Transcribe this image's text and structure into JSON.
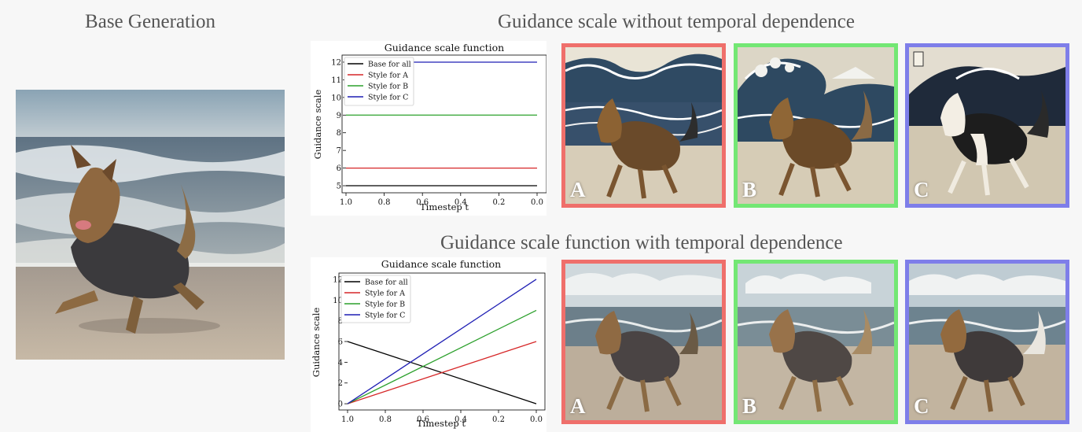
{
  "headings": {
    "base": "Base Generation",
    "top": "Guidance scale without temporal dependence",
    "bottom": "Guidance scale function with temporal dependence"
  },
  "colors": {
    "border_a": "#ef6f6b",
    "border_b": "#73e774",
    "border_c": "#7e7ee9"
  },
  "tiles_top": [
    {
      "letter": "A",
      "style": "ukiyo-e wave",
      "border": "a"
    },
    {
      "letter": "B",
      "style": "ukiyo-e wave",
      "border": "b"
    },
    {
      "letter": "C",
      "style": "ukiyo-e wave",
      "border": "c"
    }
  ],
  "tiles_bottom": [
    {
      "letter": "A",
      "style": "beach clouds",
      "border": "a"
    },
    {
      "letter": "B",
      "style": "beach clouds",
      "border": "b"
    },
    {
      "letter": "C",
      "style": "beach clouds",
      "border": "c"
    }
  ],
  "chart_data": [
    {
      "type": "line",
      "title": "Guidance scale function",
      "xlabel": "Timestep t",
      "ylabel": "Guidance scale",
      "xlim": [
        1.0,
        0.0
      ],
      "ylim": [
        4.6,
        12.4
      ],
      "xticks": [
        "1.0",
        "0.8",
        "0.6",
        "0.4",
        "0.2",
        "0.0"
      ],
      "yticks": [
        "5",
        "6",
        "7",
        "8",
        "9",
        "10",
        "11",
        "12"
      ],
      "legend": "top-left",
      "series": [
        {
          "name": "Base for all",
          "color": "#000000",
          "x": [
            1.0,
            0.0
          ],
          "y": [
            5,
            5
          ]
        },
        {
          "name": "Style for A",
          "color": "#d62728",
          "x": [
            1.0,
            0.0
          ],
          "y": [
            6,
            6
          ]
        },
        {
          "name": "Style for B",
          "color": "#2ca02c",
          "x": [
            1.0,
            0.0
          ],
          "y": [
            9,
            9
          ]
        },
        {
          "name": "Style for C",
          "color": "#1f1fb4",
          "x": [
            1.0,
            0.0
          ],
          "y": [
            12,
            12
          ]
        }
      ]
    },
    {
      "type": "line",
      "title": "Guidance scale function",
      "xlabel": "Timestep t",
      "ylabel": "Guidance scale",
      "xlim": [
        1.0,
        0.0
      ],
      "ylim": [
        -0.6,
        12.6
      ],
      "xticks": [
        "1.0",
        "0.8",
        "0.6",
        "0.4",
        "0.2",
        "0.0"
      ],
      "yticks": [
        "0",
        "2",
        "4",
        "6",
        "8",
        "10",
        "12"
      ],
      "legend": "top-left",
      "series": [
        {
          "name": "Base for all",
          "color": "#000000",
          "x": [
            1.0,
            0.0
          ],
          "y": [
            6,
            0
          ]
        },
        {
          "name": "Style for A",
          "color": "#d62728",
          "x": [
            1.0,
            0.0
          ],
          "y": [
            0,
            6
          ]
        },
        {
          "name": "Style for B",
          "color": "#2ca02c",
          "x": [
            1.0,
            0.0
          ],
          "y": [
            0,
            9
          ]
        },
        {
          "name": "Style for C",
          "color": "#1f1fb4",
          "x": [
            1.0,
            0.0
          ],
          "y": [
            0,
            12
          ]
        }
      ]
    }
  ]
}
